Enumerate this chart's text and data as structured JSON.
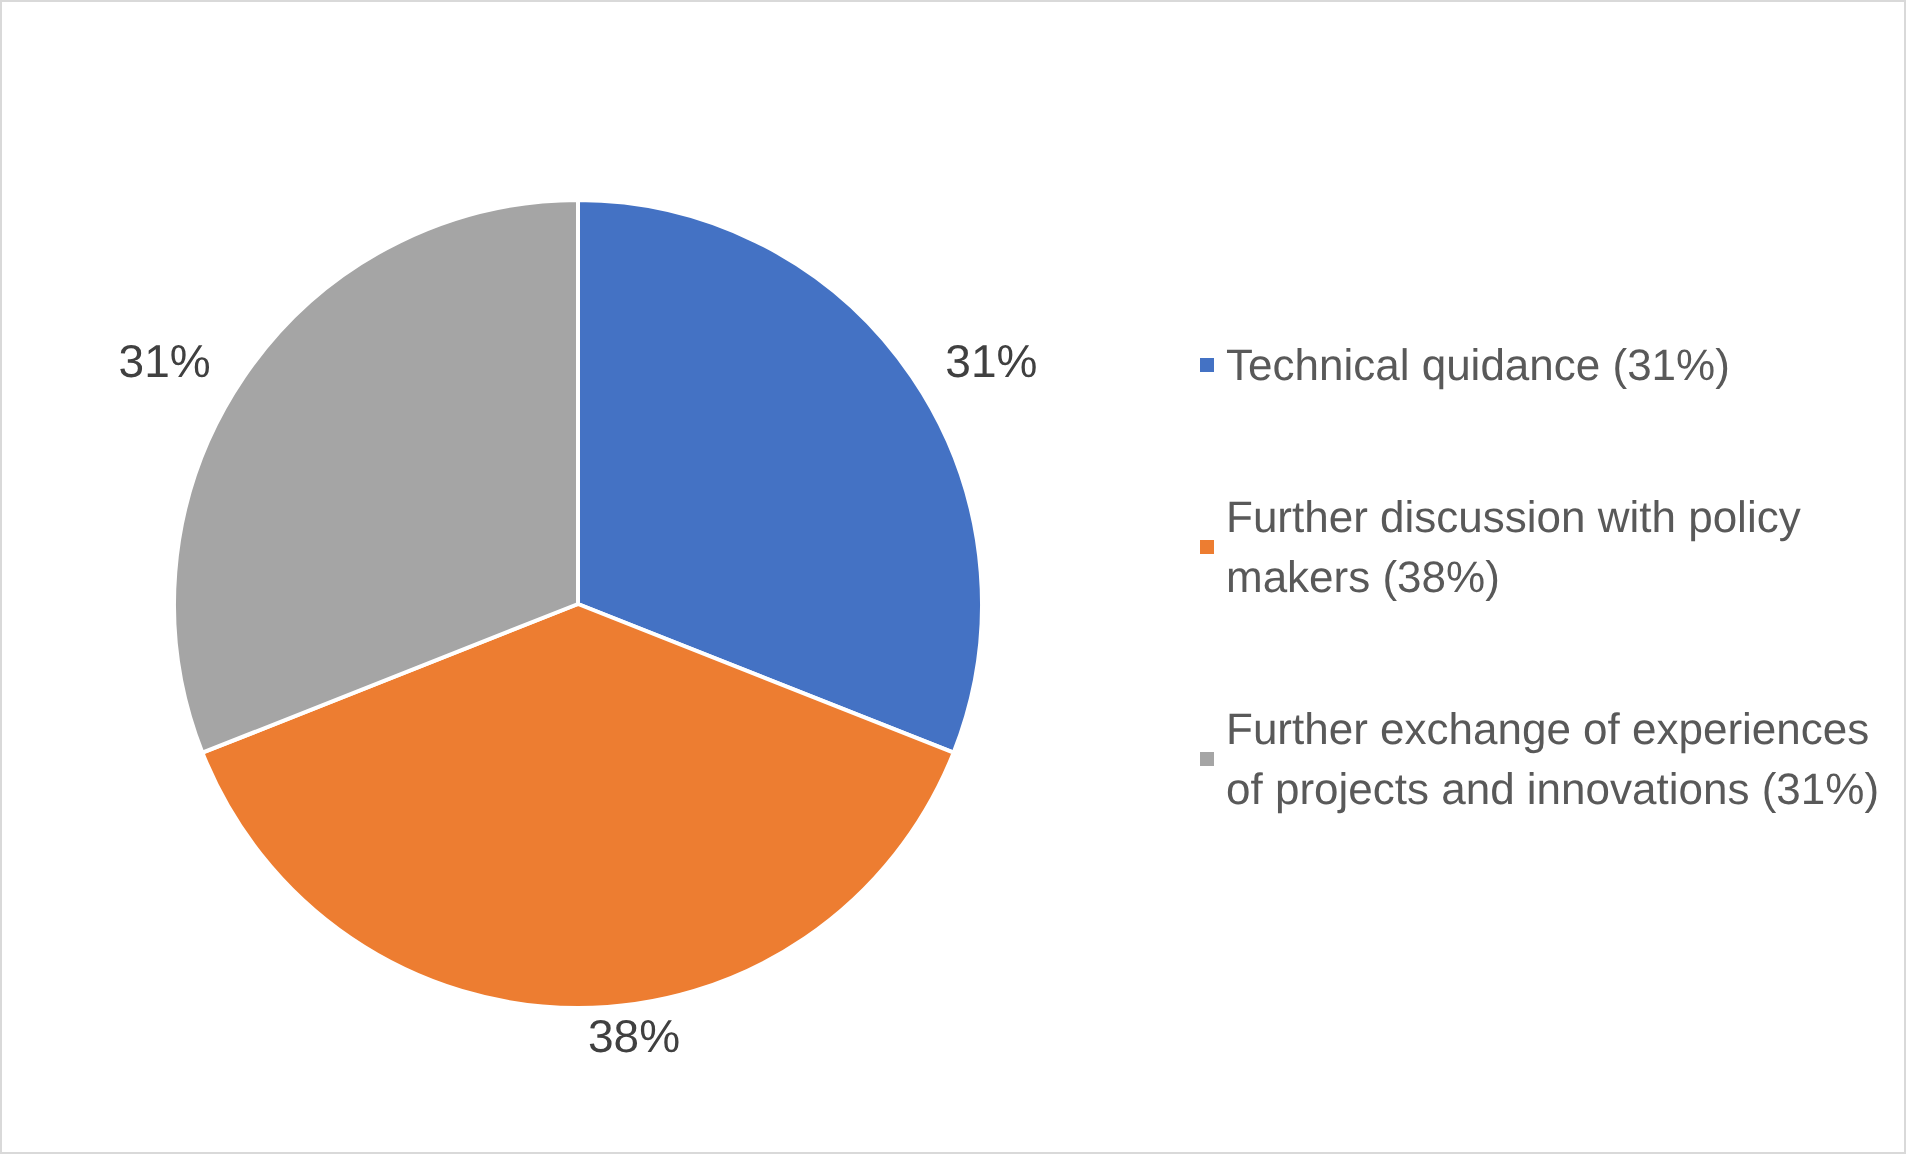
{
  "chart_data": {
    "type": "pie",
    "categories": [
      "Technical quidance (31%)",
      "Further discussion with policy makers (38%)",
      "Further exchange of experiences of projects and innovations (31%)"
    ],
    "values": [
      31,
      38,
      31
    ],
    "colors": [
      "#4472c4",
      "#ed7d31",
      "#a5a5a5"
    ],
    "value_labels": [
      "31%",
      "38%",
      "31%"
    ],
    "legend": "right"
  }
}
